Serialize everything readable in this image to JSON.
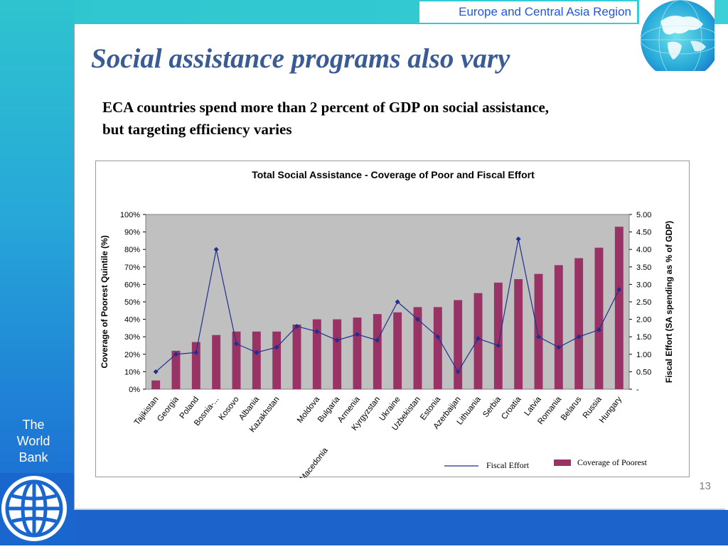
{
  "header": {
    "region": "Europe and Central Asia Region"
  },
  "slide": {
    "title": "Social assistance programs also vary",
    "subtitle_line1": "ECA countries spend more than 2 percent of GDP on social assistance,",
    "subtitle_line2": "but targeting efficiency varies",
    "page_number": "13"
  },
  "branding": {
    "line1": "The",
    "line2": "World",
    "line3": "Bank",
    "logo_icon": "world-bank-globe-logo",
    "globe_icon": "globe-icon"
  },
  "colors": {
    "bar": "#993366",
    "line": "#1f2f8f",
    "plot_bg": "#c0c0c0",
    "title_blue": "#3b5b94"
  },
  "chart_data": {
    "type": "bar",
    "title": "Total Social Assistance - Coverage of Poor and Fiscal Effort",
    "ylabel": "Coverage of Poorest Quintile (%)",
    "y2label": "Fiscal Effort (SA spending as % of GDP)",
    "ylim": [
      0,
      100
    ],
    "y2lim": [
      0,
      5
    ],
    "yticks": [
      "0%",
      "10%",
      "20%",
      "30%",
      "40%",
      "50%",
      "60%",
      "70%",
      "80%",
      "90%",
      "100%"
    ],
    "y2ticks": [
      "-",
      "0.50",
      "1.00",
      "1.50",
      "2.00",
      "2.50",
      "3.00",
      "3.50",
      "4.00",
      "4.50",
      "5.00"
    ],
    "categories": [
      "Tajikistan",
      "Georgia",
      "Poland",
      "Bosnia-...",
      "Kosovo",
      "Albania",
      "Kazakhstan",
      "FYR Macedonia",
      "Moldova",
      "Bulgaria",
      "Armenia",
      "Kyrgyzstan",
      "Ukraine",
      "Uzbekistan",
      "Estonia",
      "Azerbaijan",
      "Lithuania",
      "Serbia",
      "Croatia",
      "Latvia",
      "Romania",
      "Belarus",
      "Russia",
      "Hungary"
    ],
    "series": [
      {
        "name": "Coverage of Poorest",
        "type": "bar",
        "axis": "left",
        "values": [
          5,
          22,
          27,
          31,
          33,
          33,
          33,
          37,
          40,
          40,
          41,
          43,
          44,
          47,
          47,
          51,
          55,
          61,
          63,
          66,
          71,
          75,
          81,
          93
        ]
      },
      {
        "name": "Fiscal Effort",
        "type": "line",
        "axis": "right",
        "values": [
          0.5,
          1.0,
          1.05,
          4.0,
          1.3,
          1.05,
          1.2,
          1.8,
          1.65,
          1.4,
          1.57,
          1.4,
          2.5,
          2.0,
          1.5,
          0.5,
          1.45,
          1.25,
          4.3,
          1.5,
          1.2,
          1.5,
          1.7,
          2.85
        ]
      }
    ],
    "legend": "bottom-right",
    "grid": false
  }
}
